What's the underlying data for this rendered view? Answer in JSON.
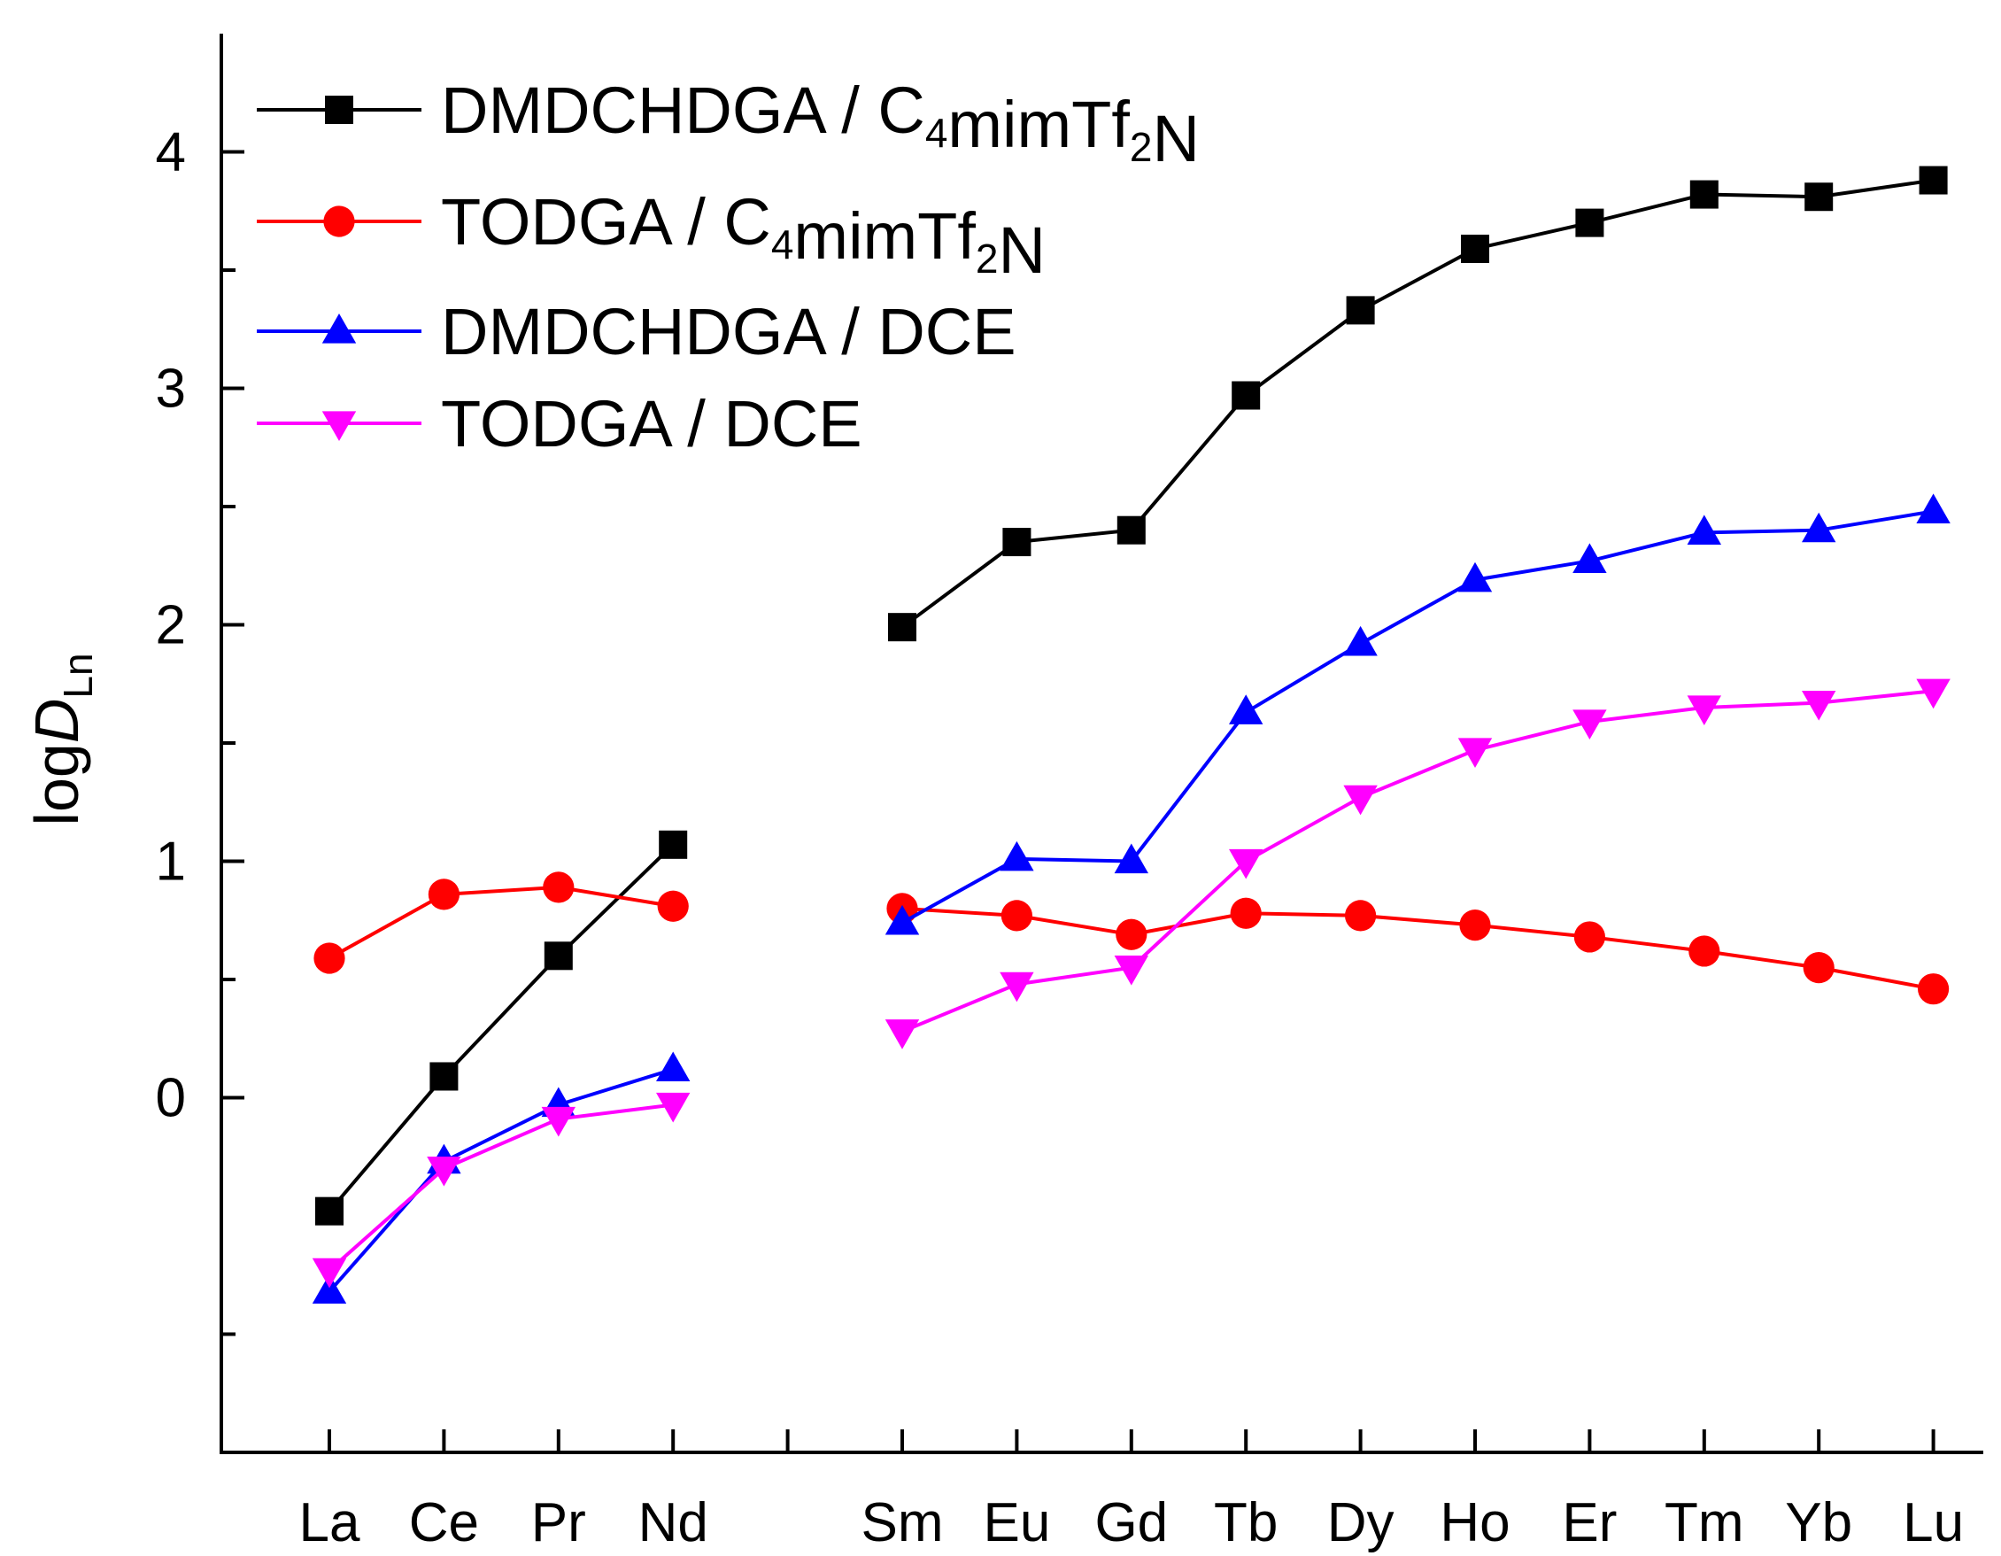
{
  "chart_data": {
    "type": "line",
    "title": "",
    "xlabel": "",
    "ylabel": {
      "base": "log",
      "italic": "D",
      "subscript": "Ln"
    },
    "ylim": [
      -1.5,
      4.5
    ],
    "yticks": [
      0,
      1,
      2,
      3,
      4
    ],
    "ytick_labels": [
      "0",
      "1",
      "2",
      "3",
      "4"
    ],
    "yminor_ticks": [
      -1,
      0.5,
      1.5,
      2.5,
      3.5
    ],
    "grid": false,
    "legend_position": "top-left",
    "categories": [
      "La",
      "Ce",
      "Pr",
      "Nd",
      "",
      "Sm",
      "Eu",
      "Gd",
      "Tb",
      "Dy",
      "Ho",
      "Er",
      "Tm",
      "Yb",
      "Lu"
    ],
    "series": [
      {
        "name": "DMDCHDGA / C4mimTf2N",
        "label_parts": [
          {
            "t": "DMDCHDGA / C",
            "sub": false
          },
          {
            "t": "4",
            "sub": true
          },
          {
            "t": "mimTf",
            "sub": false
          },
          {
            "t": "2",
            "sub": true
          },
          {
            "t": "N",
            "sub": false
          }
        ],
        "color": "#000000",
        "marker": "square",
        "values": [
          -0.48,
          0.09,
          0.6,
          1.07,
          null,
          1.99,
          2.35,
          2.4,
          2.97,
          3.33,
          3.59,
          3.7,
          3.82,
          3.81,
          3.88
        ]
      },
      {
        "name": "TODGA / C4mimTf2N",
        "label_parts": [
          {
            "t": "TODGA / C",
            "sub": false
          },
          {
            "t": "4",
            "sub": true
          },
          {
            "t": "mimTf",
            "sub": false
          },
          {
            "t": "2",
            "sub": true
          },
          {
            "t": "N",
            "sub": false
          }
        ],
        "color": "#ff0000",
        "marker": "circle",
        "values": [
          0.59,
          0.86,
          0.89,
          0.81,
          null,
          0.8,
          0.77,
          0.69,
          0.78,
          0.77,
          0.73,
          0.68,
          0.62,
          0.55,
          0.46
        ]
      },
      {
        "name": "DMDCHDGA / DCE",
        "label_parts": [
          {
            "t": "DMDCHDGA / DCE",
            "sub": false
          }
        ],
        "color": "#0000ff",
        "marker": "triangle-up",
        "values": [
          -0.82,
          -0.27,
          -0.03,
          0.12,
          null,
          0.74,
          1.01,
          1.0,
          1.63,
          1.92,
          2.19,
          2.27,
          2.39,
          2.4,
          2.48
        ]
      },
      {
        "name": "TODGA / DCE",
        "label_parts": [
          {
            "t": "TODGA / DCE",
            "sub": false
          }
        ],
        "color": "#ff00ff",
        "marker": "triangle-down",
        "values": [
          -0.73,
          -0.3,
          -0.09,
          -0.03,
          null,
          0.28,
          0.48,
          0.55,
          1.0,
          1.27,
          1.47,
          1.59,
          1.65,
          1.67,
          1.72
        ]
      }
    ]
  }
}
